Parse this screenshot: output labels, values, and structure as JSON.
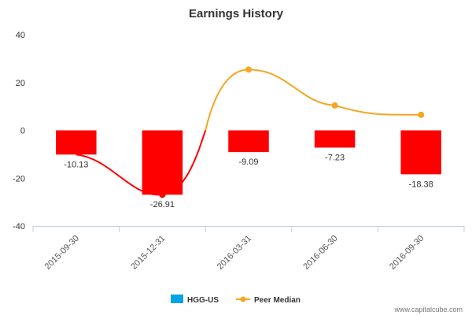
{
  "chart_data": {
    "type": "bar",
    "title": "Earnings History",
    "categories": [
      "2015-09-30",
      "2015-12-31",
      "2016-03-31",
      "2016-06-30",
      "2016-09-30"
    ],
    "ylim": [
      -40,
      40
    ],
    "yticks": [
      40,
      20,
      0,
      -20,
      -40
    ],
    "grid": false,
    "legend_position": "bottom-center",
    "series": [
      {
        "name": "HGG-US",
        "type": "bar",
        "legend_color": "#00A3E8",
        "bar_color": "#FF0000",
        "values": [
          -10.13,
          -26.91,
          -9.09,
          -7.23,
          -18.38
        ],
        "data_labels": [
          "-10.13",
          "-26.91",
          "-9.09",
          "-7.23",
          "-18.38"
        ]
      },
      {
        "name": "Peer Median",
        "type": "line",
        "color": "#F5A623",
        "segment_color_below_zero": "#FF0000",
        "values": [
          null,
          -26.91,
          25.4,
          10.4,
          6.5
        ]
      }
    ]
  },
  "credit": "www.capitalcube.com"
}
